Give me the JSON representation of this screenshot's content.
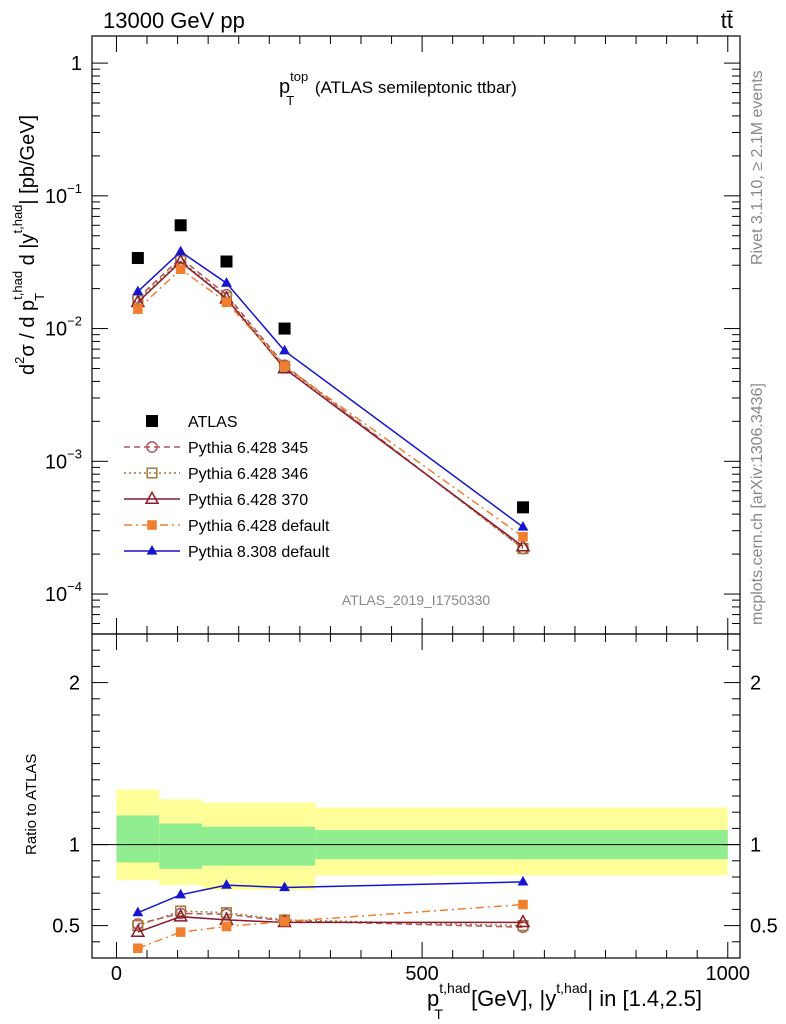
{
  "header": {
    "energy": "13000 GeV pp",
    "process": "tt̄",
    "rivet": "Rivet 3.1.10, ≥ 2.1M events",
    "mcplots": "mcplots.cern.ch [arXiv:1306.3436]",
    "analysis_id": "ATLAS_2019_I1750330"
  },
  "chart_data": [
    {
      "type": "scatter",
      "title_main": "p",
      "title_sup": "top",
      "title_sub": "T",
      "title_rest": " (ATLAS semileptonic ttbar)",
      "ylabel": "d²σ / d p_T^{t,had} d |y^{t,had}| [pb/GeV]",
      "yscale": "log",
      "ylim": [
        5e-05,
        1.6
      ],
      "y_ticks": [
        {
          "value": 1,
          "label": "1"
        },
        {
          "value": 0.1,
          "base": "10",
          "exp": "−1"
        },
        {
          "value": 0.01,
          "base": "10",
          "exp": "−2"
        },
        {
          "value": 0.001,
          "base": "10",
          "exp": "−3"
        },
        {
          "value": 0.0001,
          "base": "10",
          "exp": "−4"
        }
      ],
      "xlim": [
        -40,
        1020
      ],
      "legend_position": "lower-left",
      "series": [
        {
          "name": "ATLAS",
          "color": "#000000",
          "marker": "square",
          "line": "none",
          "x": [
            35,
            105,
            180,
            275,
            665
          ],
          "y": [
            0.034,
            0.06,
            0.032,
            0.01,
            0.00045
          ]
        },
        {
          "name": "Pythia 6.428 345",
          "color": "#b5545c",
          "marker": "open-circle",
          "line": "dashed",
          "x": [
            35,
            105,
            180,
            275,
            665
          ],
          "y": [
            0.017,
            0.034,
            0.018,
            0.0053,
            0.00022
          ]
        },
        {
          "name": "Pythia 6.428 346",
          "color": "#a07a3a",
          "marker": "open-square",
          "line": "dotted",
          "x": [
            35,
            105,
            180,
            275,
            665
          ],
          "y": [
            0.0165,
            0.0325,
            0.0172,
            0.0052,
            0.00022
          ]
        },
        {
          "name": "Pythia 6.428 370",
          "color": "#8b1a2b",
          "marker": "open-triangle",
          "line": "solid",
          "x": [
            35,
            105,
            180,
            275,
            665
          ],
          "y": [
            0.0158,
            0.0318,
            0.0168,
            0.005,
            0.000228
          ]
        },
        {
          "name": "Pythia 6.428 default",
          "color": "#f08030",
          "marker": "filled-square",
          "line": "dashdot",
          "x": [
            35,
            105,
            180,
            275,
            665
          ],
          "y": [
            0.014,
            0.028,
            0.0158,
            0.0052,
            0.00027
          ]
        },
        {
          "name": "Pythia 8.308 default",
          "color": "#1515d0",
          "marker": "filled-triangle",
          "line": "solid",
          "x": [
            35,
            105,
            180,
            275,
            665
          ],
          "y": [
            0.019,
            0.038,
            0.022,
            0.0068,
            0.00032
          ]
        }
      ]
    },
    {
      "type": "line",
      "ylabel": "Ratio to ATLAS",
      "ylim": [
        0.3,
        2.3
      ],
      "y_ticks": [
        0.5,
        1,
        2
      ],
      "xlim": [
        -40,
        1020
      ],
      "x_ticks": [
        0,
        500,
        1000
      ],
      "xlabel_main": "p",
      "xlabel_sup": "t,had",
      "xlabel_sub": "T",
      "xlabel_mid": " [GeV], |y",
      "xlabel_sup2": "t,had",
      "xlabel_end": "| in [1.4,2.5]",
      "bands": [
        {
          "x0": 0,
          "x1": 70,
          "inner": [
            0.89,
            1.18
          ],
          "outer": [
            0.78,
            1.34
          ]
        },
        {
          "x0": 70,
          "x1": 140,
          "inner": [
            0.85,
            1.13
          ],
          "outer": [
            0.75,
            1.28
          ]
        },
        {
          "x0": 140,
          "x1": 325,
          "inner": [
            0.87,
            1.11
          ],
          "outer": [
            0.72,
            1.26
          ]
        },
        {
          "x0": 325,
          "x1": 1000,
          "inner": [
            0.91,
            1.09
          ],
          "outer": [
            0.81,
            1.23
          ]
        }
      ],
      "band_colors": {
        "inner": "#90ee90",
        "outer": "#ffff99"
      },
      "series": [
        {
          "name": "Pythia 6.428 345",
          "color": "#b5545c",
          "marker": "open-circle",
          "line": "dashed",
          "x": [
            35,
            105,
            180,
            275,
            665
          ],
          "y": [
            0.51,
            0.575,
            0.57,
            0.53,
            0.49
          ]
        },
        {
          "name": "Pythia 6.428 346",
          "color": "#a07a3a",
          "marker": "open-square",
          "line": "dotted",
          "x": [
            35,
            105,
            180,
            275,
            665
          ],
          "y": [
            0.5,
            0.59,
            0.58,
            0.535,
            0.5
          ]
        },
        {
          "name": "Pythia 6.428 370",
          "color": "#8b1a2b",
          "marker": "open-triangle",
          "line": "solid",
          "x": [
            35,
            105,
            180,
            275,
            665
          ],
          "y": [
            0.46,
            0.555,
            0.535,
            0.52,
            0.52
          ]
        },
        {
          "name": "Pythia 6.428 default",
          "color": "#f08030",
          "marker": "filled-square",
          "line": "dashdot",
          "x": [
            35,
            105,
            180,
            275,
            665
          ],
          "y": [
            0.36,
            0.46,
            0.495,
            0.525,
            0.63
          ]
        },
        {
          "name": "Pythia 8.308 default",
          "color": "#1515d0",
          "marker": "filled-triangle",
          "line": "solid",
          "x": [
            35,
            105,
            180,
            275,
            665
          ],
          "y": [
            0.58,
            0.69,
            0.75,
            0.735,
            0.77
          ]
        }
      ]
    }
  ]
}
